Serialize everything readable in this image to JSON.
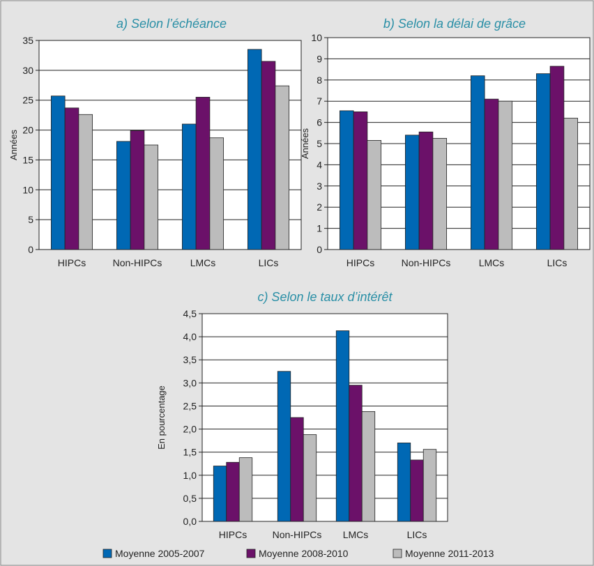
{
  "legend": [
    "Moyenne 2005-2007",
    "Moyenne 2008-2010",
    "Moyenne 2011-2013"
  ],
  "colors": {
    "series": [
      "#0068b4",
      "#6b1169",
      "#bcbcbc"
    ],
    "title": "#2a8fa6",
    "background": "#e4e4e4"
  },
  "chart_data": [
    {
      "type": "bar",
      "title": "a) Selon l’échéance",
      "ylabel": "Années",
      "categories": [
        "HIPCs",
        "Non-HIPCs",
        "LMCs",
        "LICs"
      ],
      "ylim": [
        0,
        35
      ],
      "yticks": [
        "0",
        "5",
        "10",
        "15",
        "20",
        "25",
        "30",
        "35"
      ],
      "grid": true,
      "series": [
        {
          "name": "Moyenne 2005-2007",
          "values": [
            25.7,
            18.1,
            21.0,
            33.5
          ]
        },
        {
          "name": "Moyenne 2008-2010",
          "values": [
            23.7,
            19.9,
            25.5,
            31.5
          ]
        },
        {
          "name": "Moyenne 2011-2013",
          "values": [
            22.6,
            17.5,
            18.7,
            27.4
          ]
        }
      ]
    },
    {
      "type": "bar",
      "title": "b) Selon la délai de grâce",
      "ylabel": "Années",
      "categories": [
        "HIPCs",
        "Non-HIPCs",
        "LMCs",
        "LICs"
      ],
      "ylim": [
        0,
        10
      ],
      "yticks": [
        "0",
        "1",
        "2",
        "3",
        "4",
        "5",
        "6",
        "7",
        "8",
        "9",
        "10"
      ],
      "grid": true,
      "series": [
        {
          "name": "Moyenne 2005-2007",
          "values": [
            6.55,
            5.4,
            8.2,
            8.3
          ]
        },
        {
          "name": "Moyenne 2008-2010",
          "values": [
            6.5,
            5.55,
            7.1,
            8.65
          ]
        },
        {
          "name": "Moyenne 2011-2013",
          "values": [
            5.15,
            5.25,
            7.0,
            6.2
          ]
        }
      ]
    },
    {
      "type": "bar",
      "title": "c) Selon le taux d’intérêt",
      "ylabel": "En pourcentage",
      "categories": [
        "HIPCs",
        "Non-HIPCs",
        "LMCs",
        "LICs"
      ],
      "ylim": [
        0,
        4.5
      ],
      "yticks": [
        "0,0",
        "0,5",
        "1,0",
        "1,5",
        "2,0",
        "2,5",
        "3,0",
        "3,5",
        "4,0",
        "4,5"
      ],
      "grid": true,
      "series": [
        {
          "name": "Moyenne 2005-2007",
          "values": [
            1.2,
            3.25,
            4.13,
            1.7
          ]
        },
        {
          "name": "Moyenne 2008-2010",
          "values": [
            1.28,
            2.25,
            2.95,
            1.33
          ]
        },
        {
          "name": "Moyenne 2011-2013",
          "values": [
            1.38,
            1.88,
            2.38,
            1.56
          ]
        }
      ]
    }
  ]
}
